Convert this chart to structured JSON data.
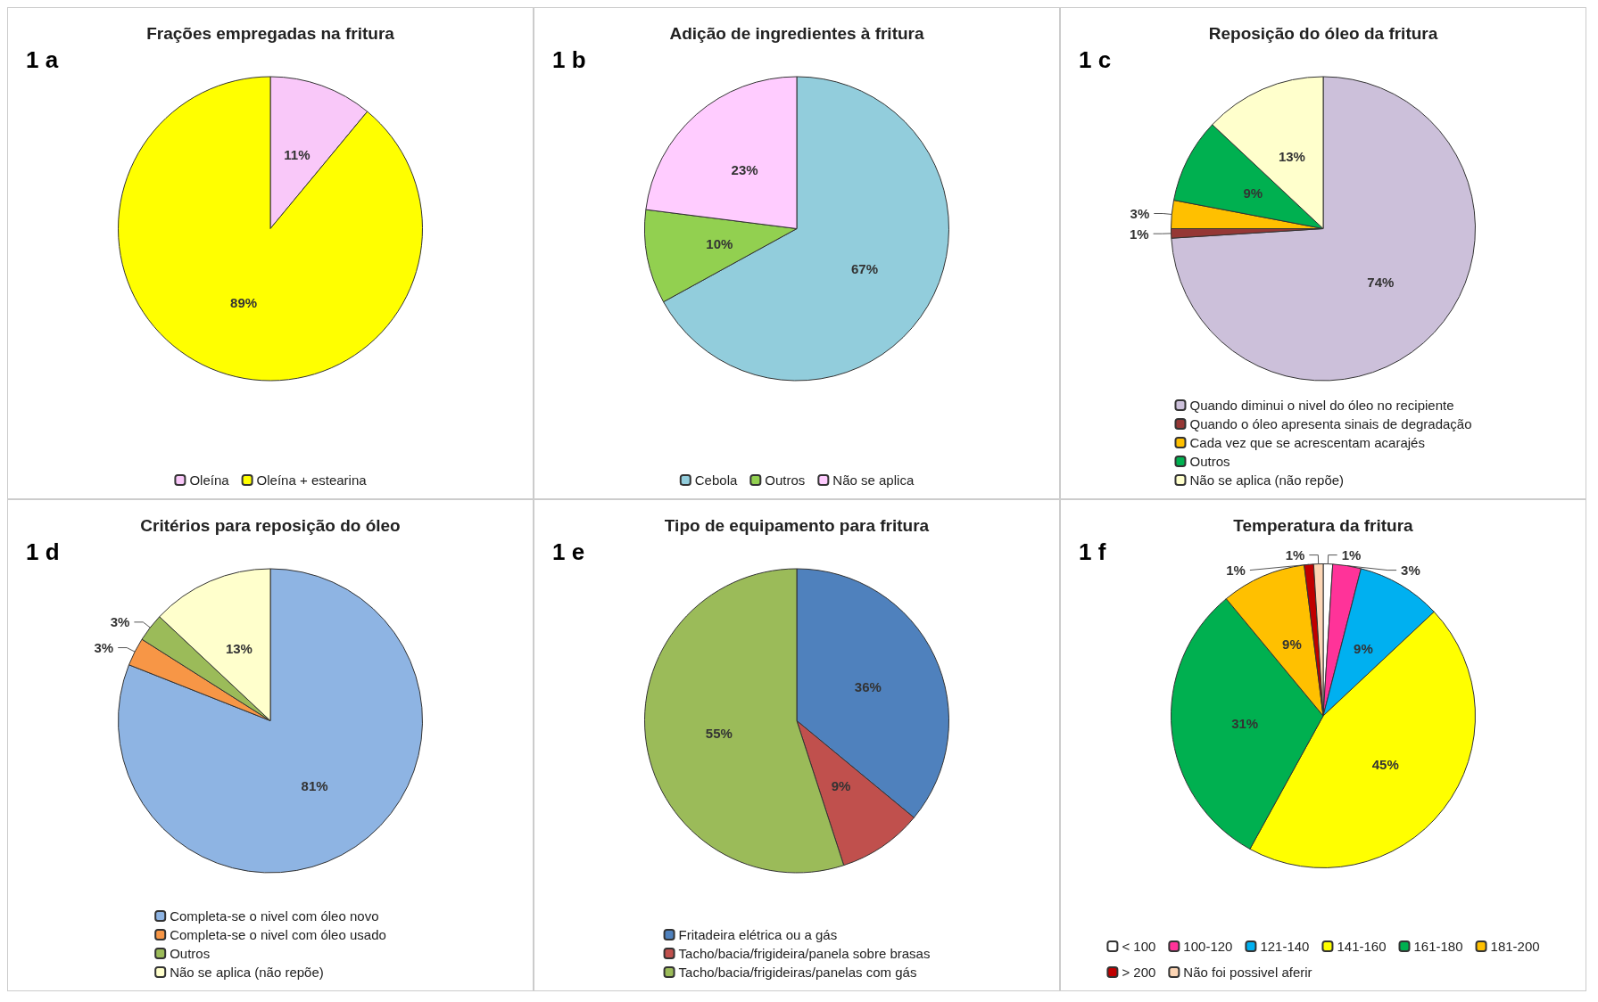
{
  "chart_data": [
    {
      "type": "pie",
      "title": "Frações empregadas na fritura",
      "annotations": [
        "1 a"
      ],
      "categories": [
        "Oleína",
        "Oleína + estearina"
      ],
      "values": [
        11,
        89
      ],
      "value_labels": [
        "11%",
        "89%"
      ],
      "colors": [
        "#f9c8f9",
        "#ffff00"
      ],
      "legend": "bottom"
    },
    {
      "type": "pie",
      "title": "Adição de ingredientes à fritura",
      "annotations": [
        "1 b"
      ],
      "categories": [
        "Cebola",
        "Outros",
        "Não se aplica"
      ],
      "values": [
        67,
        10,
        23
      ],
      "value_labels": [
        "67%",
        "10%",
        "23%"
      ],
      "colors": [
        "#92cddc",
        "#92d050",
        "#ffccff"
      ],
      "legend": "bottom"
    },
    {
      "type": "pie",
      "title": "Reposição do óleo da fritura",
      "annotations": [
        "1 c"
      ],
      "categories": [
        "Quando diminui o nivel do óleo no recipiente",
        "Quando o óleo apresenta sinais de degradação",
        "Cada vez que se acrescentam acarajés",
        "Outros",
        "Não se aplica (não repõe)"
      ],
      "values": [
        74,
        1,
        3,
        9,
        13
      ],
      "value_labels": [
        "74%",
        "1%",
        "3%",
        "9%",
        "13%"
      ],
      "colors": [
        "#ccc0da",
        "#953735",
        "#ffc000",
        "#00b050",
        "#ffffcc"
      ],
      "legend": "bottom"
    },
    {
      "type": "pie",
      "title": "Critérios para reposição do óleo",
      "annotations": [
        "1 d"
      ],
      "categories": [
        "Completa-se o nivel com óleo novo",
        "Completa-se o nivel com óleo usado",
        "Outros",
        "Não se aplica (não repõe)"
      ],
      "values": [
        81,
        3,
        3,
        13
      ],
      "value_labels": [
        "81%",
        "3%",
        "3%",
        "13%"
      ],
      "colors": [
        "#8eb4e3",
        "#f79646",
        "#9bbb59",
        "#ffffcc"
      ],
      "legend": "bottom"
    },
    {
      "type": "pie",
      "title": "Tipo de equipamento para fritura",
      "annotations": [
        "1 e"
      ],
      "categories": [
        "Fritadeira elétrica ou a gás",
        "Tacho/bacia/frigideira/panela sobre brasas",
        "Tacho/bacia/frigideiras/panelas com gás"
      ],
      "values": [
        36,
        9,
        55
      ],
      "value_labels": [
        "36%",
        "9%",
        "55%"
      ],
      "colors": [
        "#4f81bd",
        "#c0504d",
        "#9bbb59"
      ],
      "legend": "bottom"
    },
    {
      "type": "pie",
      "title": "Temperatura da fritura",
      "annotations": [
        "1 f"
      ],
      "categories": [
        "< 100",
        "100-120",
        "121-140",
        "141-160",
        "161-180",
        "181-200",
        "> 200",
        "Não foi possivel aferir"
      ],
      "values": [
        1,
        3,
        9,
        45,
        31,
        9,
        1,
        1
      ],
      "value_labels": [
        "1%",
        "3%",
        "9%",
        "45%",
        "31%",
        "9%",
        "1%",
        "1%"
      ],
      "colors": [
        "#ffffff",
        "#ff3399",
        "#00b0f0",
        "#ffff00",
        "#00b050",
        "#ffc000",
        "#c00000",
        "#fcd5b4"
      ],
      "legend": "bottom"
    }
  ]
}
